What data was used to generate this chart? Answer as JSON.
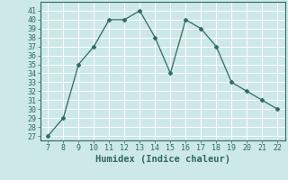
{
  "x": [
    7,
    8,
    9,
    10,
    11,
    12,
    13,
    14,
    15,
    16,
    17,
    18,
    19,
    20,
    21,
    22
  ],
  "y": [
    27,
    29,
    35,
    37,
    40,
    40,
    41,
    38,
    34,
    40,
    39,
    37,
    33,
    32,
    31,
    30
  ],
  "xlim": [
    6.5,
    22.5
  ],
  "ylim": [
    26.5,
    42
  ],
  "yticks": [
    27,
    28,
    29,
    30,
    31,
    32,
    33,
    34,
    35,
    36,
    37,
    38,
    39,
    40,
    41
  ],
  "xticks": [
    7,
    8,
    9,
    10,
    11,
    12,
    13,
    14,
    15,
    16,
    17,
    18,
    19,
    20,
    21,
    22
  ],
  "xlabel": "Humidex (Indice chaleur)",
  "line_color": "#2e6b5e",
  "marker": "D",
  "marker_size": 2.5,
  "bg_color": "#cde8e8",
  "grid_color": "#ffffff",
  "tick_fontsize": 6,
  "label_fontsize": 7.5
}
